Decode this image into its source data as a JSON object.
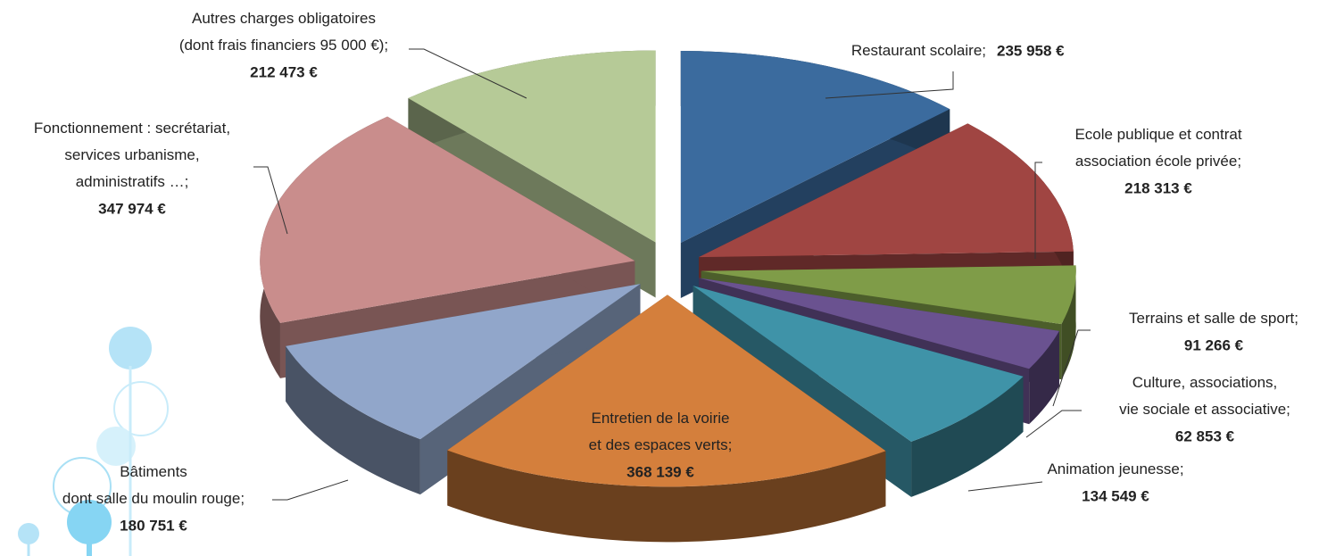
{
  "chart_data": {
    "type": "pie3d",
    "categories": [
      "Restaurant scolaire;",
      "Ecole publique et contrat\nassociation école privée;",
      "Terrains et salle de sport;",
      "Culture, associations,\nvie sociale et associative;",
      "Animation jeunesse;",
      "Entretien de la voirie\net des espaces verts;",
      "Bâtiments\ndont salle du moulin rouge;",
      "Fonctionnement : secrétariat,\nservices urbanisme,\nadministratifs …;",
      "Autres charges obligatoires\n(dont frais financiers 95 000 €);"
    ],
    "values": [
      235958,
      218313,
      91266,
      62853,
      134549,
      368139,
      180751,
      347974,
      212473
    ],
    "value_labels": [
      "235 958 €",
      "218 313 €",
      "91 266 €",
      "62 853 €",
      "134 549 €",
      "368 139 €",
      "180 751 €",
      "347 974 €",
      "212 473  €"
    ],
    "colors": [
      "#3b6b9e",
      "#a04542",
      "#7f9c48",
      "#6a5290",
      "#3f93a8",
      "#d47f3c",
      "#91a6ca",
      "#c98d8c",
      "#b6ca97"
    ]
  }
}
